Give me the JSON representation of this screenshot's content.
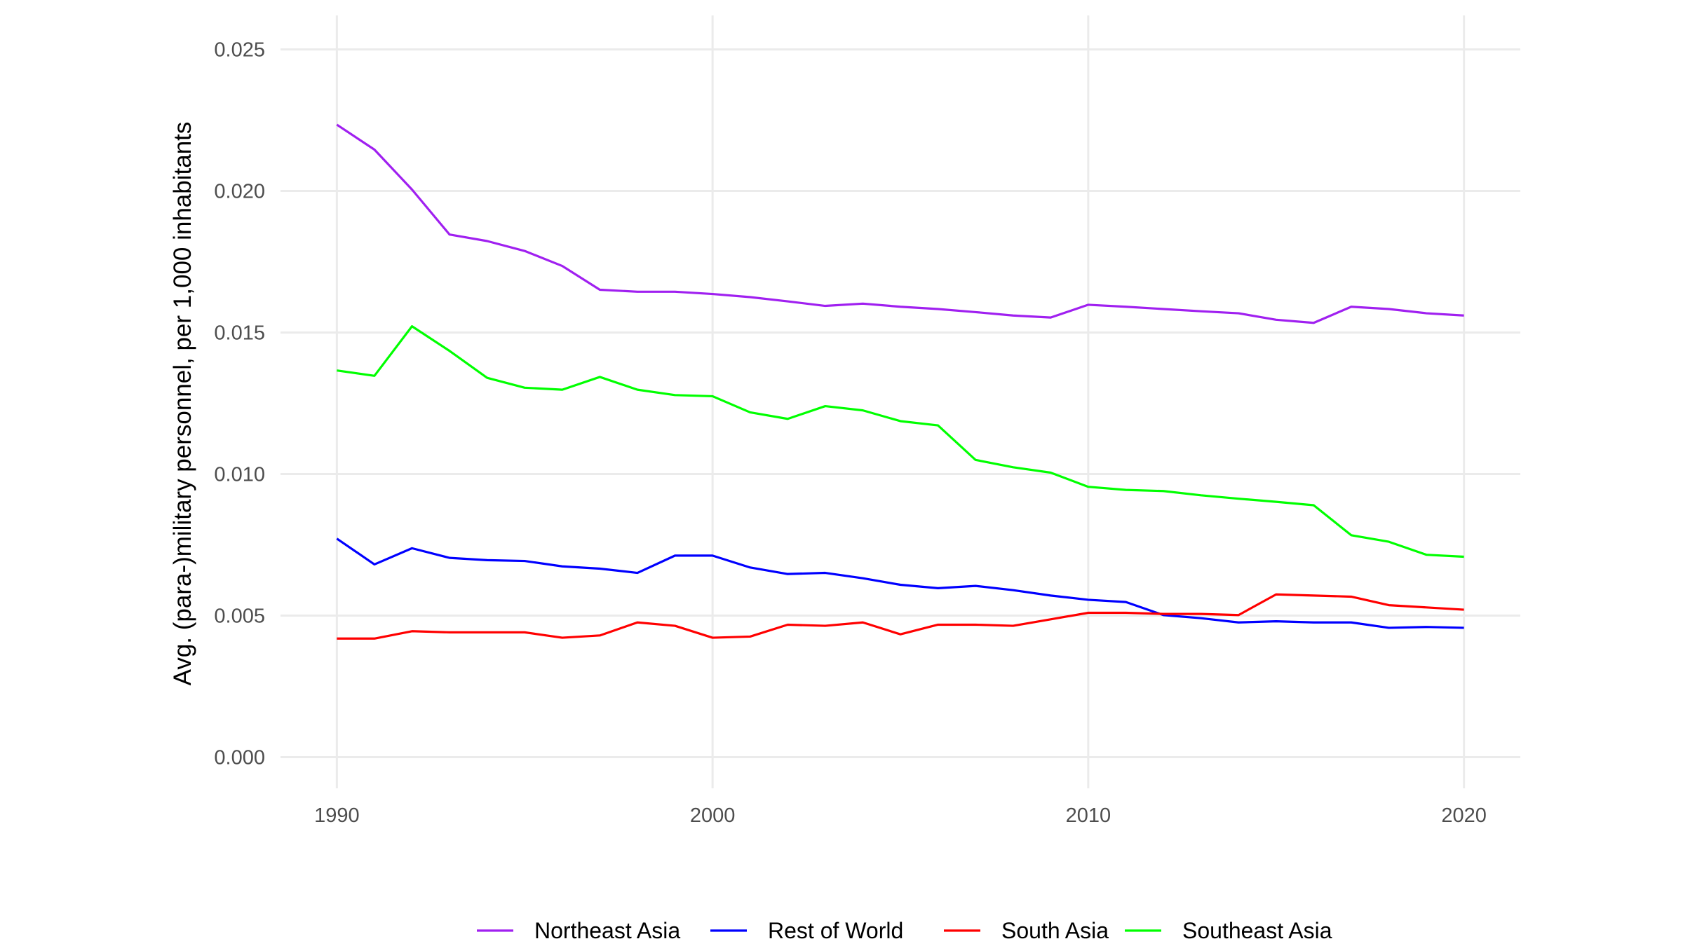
{
  "chart_data": {
    "type": "line",
    "title": "",
    "xlabel": "",
    "ylabel": "Avg. (para-)military personnel, per 1,000 inhabitants",
    "xlim": [
      1988.5,
      2021.5
    ],
    "ylim": [
      -0.0011,
      0.0262
    ],
    "grid": true,
    "legend_position": "bottom",
    "x_ticks": [
      "1990",
      "2000",
      "2010",
      "2020"
    ],
    "x_tick_values": [
      1990,
      2000,
      2010,
      2020
    ],
    "y_ticks": [
      "0.000",
      "0.005",
      "0.010",
      "0.015",
      "0.020",
      "0.025"
    ],
    "y_tick_values": [
      0,
      0.005,
      0.01,
      0.015,
      0.02,
      0.025
    ],
    "x": [
      1990,
      1991,
      1992,
      1993,
      1994,
      1995,
      1996,
      1997,
      1998,
      1999,
      2000,
      2001,
      2002,
      2003,
      2004,
      2005,
      2006,
      2007,
      2008,
      2009,
      2010,
      2011,
      2012,
      2013,
      2014,
      2015,
      2016,
      2017,
      2018,
      2019,
      2020
    ],
    "series": [
      {
        "name": "Northeast Asia",
        "color": "#A020F0",
        "values": [
          0.02234,
          0.02146,
          0.02005,
          0.01846,
          0.01823,
          0.01788,
          0.01735,
          0.01651,
          0.01644,
          0.01644,
          0.01636,
          0.01625,
          0.0161,
          0.01594,
          0.01602,
          0.01591,
          0.01583,
          0.01572,
          0.0156,
          0.01553,
          0.01598,
          0.01591,
          0.01583,
          0.01575,
          0.01568,
          0.01545,
          0.01534,
          0.01591,
          0.01583,
          0.01568,
          0.0156
        ]
      },
      {
        "name": "Rest of World",
        "color": "#0000FF",
        "values": [
          0.00772,
          0.00681,
          0.00738,
          0.00704,
          0.00696,
          0.00693,
          0.00674,
          0.00666,
          0.00651,
          0.00712,
          0.00712,
          0.0067,
          0.00647,
          0.00651,
          0.00632,
          0.00609,
          0.00597,
          0.00605,
          0.0059,
          0.00571,
          0.00556,
          0.00548,
          0.00502,
          0.00491,
          0.00476,
          0.0048,
          0.00476,
          0.00476,
          0.00457,
          0.0046,
          0.00457
        ]
      },
      {
        "name": "South Asia",
        "color": "#FF0000",
        "values": [
          0.00419,
          0.00419,
          0.00445,
          0.00441,
          0.00441,
          0.00441,
          0.00422,
          0.0043,
          0.00476,
          0.00464,
          0.00422,
          0.00426,
          0.00468,
          0.00464,
          0.00476,
          0.00434,
          0.00468,
          0.00468,
          0.00464,
          0.00487,
          0.0051,
          0.0051,
          0.00506,
          0.00506,
          0.00502,
          0.00575,
          0.00571,
          0.00567,
          0.00537,
          0.00529,
          0.00521
        ]
      },
      {
        "name": "Southeast Asia",
        "color": "#00FF00",
        "values": [
          0.01366,
          0.01347,
          0.01522,
          0.01435,
          0.0134,
          0.01305,
          0.01298,
          0.01343,
          0.01298,
          0.01279,
          0.01275,
          0.01218,
          0.01195,
          0.0124,
          0.01225,
          0.01187,
          0.01172,
          0.0105,
          0.01024,
          0.01005,
          0.00955,
          0.00944,
          0.0094,
          0.00925,
          0.00913,
          0.00902,
          0.0089,
          0.00784,
          0.00761,
          0.00715,
          0.00708
        ]
      }
    ]
  }
}
